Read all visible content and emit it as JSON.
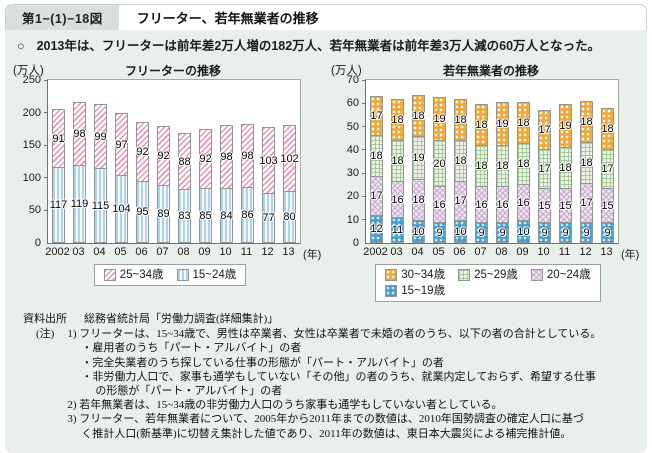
{
  "header": {
    "figure_label": "第1−(1)−18図",
    "title": "フリーター、若年無業者の推移"
  },
  "summary": {
    "bullet": "○",
    "text": "2013年は、フリーターは前年差2万人増の182万人、若年無業者は前年差3万人減の60万人となった。"
  },
  "chart_data": [
    {
      "type": "bar",
      "stacked": true,
      "title": "フリーターの推移",
      "unit_label": "(万人)",
      "x_suffix": "(年)",
      "categories": [
        "2002",
        "03",
        "04",
        "05",
        "06",
        "07",
        "08",
        "09",
        "10",
        "11",
        "12",
        "13"
      ],
      "ylim": [
        0,
        250
      ],
      "yticks": [
        0,
        50,
        100,
        150,
        200,
        250
      ],
      "grid": false,
      "series": [
        {
          "name": "15~24歳",
          "pattern": "blue-vstripe",
          "values": [
            117,
            119,
            115,
            104,
            95,
            89,
            83,
            85,
            84,
            86,
            77,
            80
          ]
        },
        {
          "name": "25~34歳",
          "pattern": "pink-hatch",
          "values": [
            91,
            98,
            99,
            97,
            92,
            92,
            88,
            92,
            98,
            98,
            103,
            102
          ]
        }
      ],
      "legend_rows": [
        [
          "25~34歳",
          "15~24歳"
        ]
      ],
      "legend_position": "bottom"
    },
    {
      "type": "bar",
      "stacked": true,
      "title": "若年無業者の推移",
      "unit_label": "(万人)",
      "x_suffix": "(年)",
      "categories": [
        "2002",
        "03",
        "04",
        "05",
        "06",
        "07",
        "08",
        "09",
        "10",
        "11",
        "12",
        "13"
      ],
      "ylim": [
        0,
        70
      ],
      "yticks": [
        0,
        10,
        20,
        30,
        40,
        50,
        60,
        70
      ],
      "grid": false,
      "series": [
        {
          "name": "15~19歳",
          "pattern": "blue-dots",
          "values": [
            12,
            11,
            10,
            9,
            10,
            9,
            9,
            10,
            9,
            9,
            9,
            9
          ]
        },
        {
          "name": "20~24歳",
          "pattern": "purple-check",
          "values": [
            17,
            16,
            18,
            16,
            17,
            16,
            16,
            16,
            15,
            15,
            17,
            15
          ]
        },
        {
          "name": "25~29歳",
          "pattern": "green-grid",
          "values": [
            18,
            18,
            19,
            20,
            18,
            18,
            18,
            18,
            17,
            18,
            18,
            17
          ]
        },
        {
          "name": "30~34歳",
          "pattern": "orange-tri",
          "values": [
            17,
            18,
            18,
            19,
            18,
            18,
            19,
            18,
            17,
            19,
            18,
            18
          ]
        }
      ],
      "legend_rows": [
        [
          "30~34歳",
          "25~29歳",
          "20~24歳"
        ],
        [
          "15~19歳"
        ]
      ],
      "legend_position": "bottom"
    }
  ],
  "notes": {
    "source_label": "資料出所",
    "source_text": "総務省統計局「労働力調査(詳細集計)」",
    "note_label": "(注)",
    "items": [
      {
        "indent": 0,
        "text": "1) フリーターは、15~34歳で、男性は卒業者、女性は卒業者で未婚の者のうち、以下の者の合計としている。"
      },
      {
        "indent": 1,
        "text": "・雇用者のうち「パート・アルバイト」の者"
      },
      {
        "indent": 1,
        "text": "・完全失業者のうち探している仕事の形態が「パート・アルバイト」の者"
      },
      {
        "indent": 1,
        "text": "・非労働力人口で、家事も通学もしていない「その他」の者のうち、就業内定しておらず、希望する仕事"
      },
      {
        "indent": 2,
        "text": "の形態が「パート・アルバイト」の者"
      },
      {
        "indent": 0,
        "text": "2) 若年無業者は、15~34歳の非労働力人口のうち家事も通学もしていない者としている。"
      },
      {
        "indent": 0,
        "text": "3) フリーター、若年無業者について、2005年から2011年までの数値は、2010年国勢調査の確定人口に基づ"
      },
      {
        "indent": 1,
        "text": "く推計人口(新基準)に切替え集計した値であり、2011年の数値は、東日本大震災による補完推計値。"
      }
    ]
  },
  "colors": {
    "panel_background": "#e9efeb",
    "figure_label_background": "#d9dede",
    "freeter_25_34": "#ec93af",
    "freeter_15_24": "#aed3ea",
    "neet_30_34": "#f0a838",
    "neet_25_29": "#a8c99b",
    "neet_20_24": "#c9a9d0",
    "neet_15_19": "#459dd0"
  }
}
